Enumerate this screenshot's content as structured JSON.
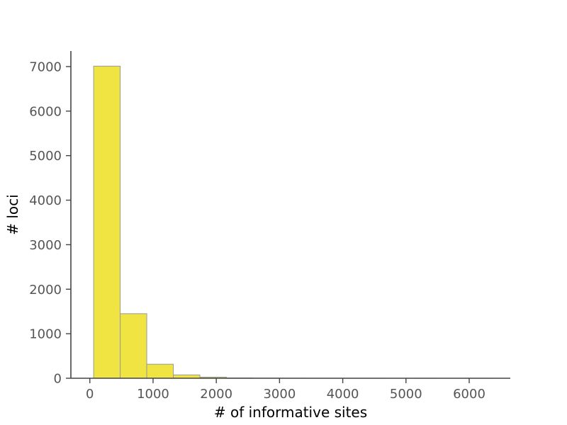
{
  "chart_data": {
    "type": "bar",
    "title": "",
    "xlabel": "# of informative sites",
    "ylabel": "# loci",
    "xlim": [
      -300,
      6650
    ],
    "ylim": [
      0,
      7350
    ],
    "x_ticks": [
      0,
      1000,
      2000,
      3000,
      4000,
      5000,
      6000
    ],
    "y_ticks": [
      0,
      1000,
      2000,
      3000,
      4000,
      5000,
      6000,
      7000
    ],
    "grid": false,
    "bar_color": "#f0e442",
    "bar_edge_color": "#999999",
    "bins": [
      {
        "x0": 60,
        "x1": 480,
        "value": 7010
      },
      {
        "x0": 480,
        "x1": 900,
        "value": 1450
      },
      {
        "x0": 900,
        "x1": 1320,
        "value": 315
      },
      {
        "x0": 1320,
        "x1": 1740,
        "value": 75
      },
      {
        "x0": 1740,
        "x1": 2160,
        "value": 25
      },
      {
        "x0": 2160,
        "x1": 2580,
        "value": 8
      },
      {
        "x0": 2580,
        "x1": 3000,
        "value": 4
      },
      {
        "x0": 3000,
        "x1": 3420,
        "value": 2
      },
      {
        "x0": 3420,
        "x1": 3840,
        "value": 1
      },
      {
        "x0": 3840,
        "x1": 4260,
        "value": 1
      },
      {
        "x0": 4260,
        "x1": 4680,
        "value": 1
      },
      {
        "x0": 4680,
        "x1": 5100,
        "value": 0
      },
      {
        "x0": 5100,
        "x1": 5520,
        "value": 1
      },
      {
        "x0": 5520,
        "x1": 5940,
        "value": 0
      },
      {
        "x0": 5940,
        "x1": 6360,
        "value": 1
      }
    ]
  }
}
